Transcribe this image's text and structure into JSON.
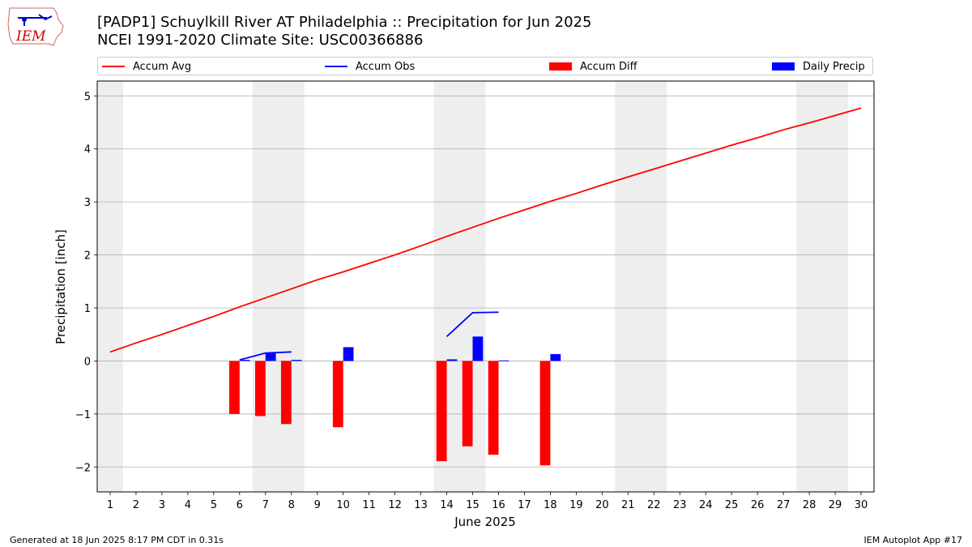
{
  "header": {
    "title_line1": "[PADP1] Schuylkill River  AT Philadelphia :: Precipitation for Jun 2025",
    "title_line2": "NCEI 1991-2020 Climate Site: USC00366886",
    "logo_text": "IEM"
  },
  "footer": {
    "left": "Generated at 18 Jun 2025 8:17 PM CDT in 0.31s",
    "right": "IEM Autoplot App #17"
  },
  "colors": {
    "accum_avg": "#ff0000",
    "accum_obs": "#0000ff",
    "accum_diff": "#ff0000",
    "daily_precip": "#0000ff",
    "weekend_shade": "#eeeeee",
    "grid": "#b0b0b0"
  },
  "chart_data": {
    "type": "bar",
    "title": "[PADP1] Schuylkill River  AT Philadelphia :: Precipitation for Jun 2025",
    "subtitle": "NCEI 1991-2020 Climate Site: USC00366886",
    "xlabel": "June 2025",
    "ylabel": "Precipitation [inch]",
    "xlim": [
      0.5,
      30.5
    ],
    "ylim": [
      -2.47,
      5.28
    ],
    "yticks": [
      -2,
      -1,
      0,
      1,
      2,
      3,
      4,
      5
    ],
    "ytick_labels": [
      "−2",
      "−1",
      "0",
      "1",
      "2",
      "3",
      "4",
      "5"
    ],
    "x": [
      1,
      2,
      3,
      4,
      5,
      6,
      7,
      8,
      9,
      10,
      11,
      12,
      13,
      14,
      15,
      16,
      17,
      18,
      19,
      20,
      21,
      22,
      23,
      24,
      25,
      26,
      27,
      28,
      29,
      30
    ],
    "grid": "y",
    "legend_position": "top",
    "weekend_spans": [
      [
        0.5,
        1.5
      ],
      [
        6.5,
        8.5
      ],
      [
        13.5,
        15.5
      ],
      [
        20.5,
        22.5
      ],
      [
        27.5,
        29.5
      ]
    ],
    "series": [
      {
        "name": "Accum Avg",
        "kind": "line",
        "values": [
          0.17,
          0.34,
          0.5,
          0.67,
          0.84,
          1.02,
          1.19,
          1.36,
          1.53,
          1.68,
          1.84,
          2.0,
          2.17,
          2.35,
          2.52,
          2.69,
          2.85,
          3.01,
          3.16,
          3.32,
          3.47,
          3.62,
          3.77,
          3.92,
          4.07,
          4.21,
          4.36,
          4.49,
          4.63,
          4.77
        ]
      },
      {
        "name": "Accum Obs",
        "kind": "line",
        "segments": [
          {
            "x": [
              6,
              7,
              8
            ],
            "y": [
              0.02,
              0.15,
              0.17
            ]
          },
          {
            "x": [
              14,
              15,
              16
            ],
            "y": [
              0.46,
              0.91,
              0.92
            ]
          }
        ]
      },
      {
        "name": "Accum Diff",
        "kind": "bar",
        "x": [
          6,
          7,
          8,
          10,
          14,
          15,
          16,
          18
        ],
        "values": [
          -1.0,
          -1.04,
          -1.19,
          -1.25,
          -1.89,
          -1.61,
          -1.77,
          -1.97
        ]
      },
      {
        "name": "Daily Precip",
        "kind": "bar",
        "x": [
          6,
          7,
          8,
          10,
          14,
          15,
          16,
          18
        ],
        "values": [
          0.02,
          0.15,
          0.02,
          0.26,
          0.03,
          0.46,
          0.01,
          0.13
        ]
      }
    ]
  }
}
